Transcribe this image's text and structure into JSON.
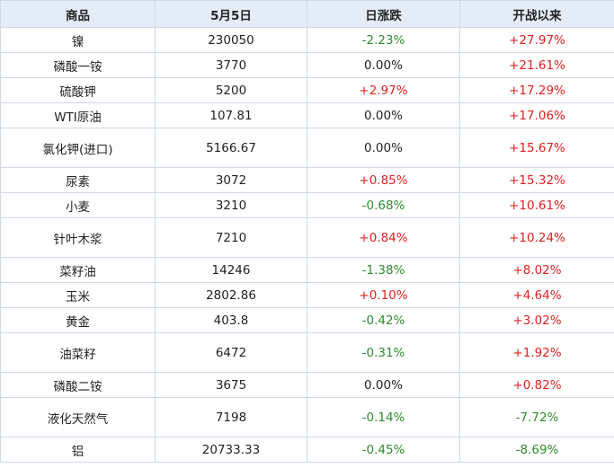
{
  "table": {
    "headers": [
      "商品",
      "5月5日",
      "日涨跌",
      "开战以来"
    ],
    "rows": [
      {
        "name": "镍",
        "price": "230050",
        "daily": "-2.23%",
        "since": "+27.97%",
        "tall": false
      },
      {
        "name": "磷酸一铵",
        "price": "3770",
        "daily": "0.00%",
        "since": "+21.61%",
        "tall": false
      },
      {
        "name": "硫酸钾",
        "price": "5200",
        "daily": "+2.97%",
        "since": "+17.29%",
        "tall": false
      },
      {
        "name": "WTI原油",
        "price": "107.81",
        "daily": "0.00%",
        "since": "+17.06%",
        "tall": false
      },
      {
        "name": "氯化钾(进口)",
        "price": "5166.67",
        "daily": "0.00%",
        "since": "+15.67%",
        "tall": true
      },
      {
        "name": "尿素",
        "price": "3072",
        "daily": "+0.85%",
        "since": "+15.32%",
        "tall": false
      },
      {
        "name": "小麦",
        "price": "3210",
        "daily": "-0.68%",
        "since": "+10.61%",
        "tall": false
      },
      {
        "name": "针叶木浆",
        "price": "7210",
        "daily": "+0.84%",
        "since": "+10.24%",
        "tall": true
      },
      {
        "name": "菜籽油",
        "price": "14246",
        "daily": "-1.38%",
        "since": "+8.02%",
        "tall": false
      },
      {
        "name": "玉米",
        "price": "2802.86",
        "daily": "+0.10%",
        "since": "+4.64%",
        "tall": false
      },
      {
        "name": "黄金",
        "price": "403.8",
        "daily": "-0.42%",
        "since": "+3.02%",
        "tall": false
      },
      {
        "name": "油菜籽",
        "price": "6472",
        "daily": "-0.31%",
        "since": "+1.92%",
        "tall": true
      },
      {
        "name": "磷酸二铵",
        "price": "3675",
        "daily": "0.00%",
        "since": "+0.82%",
        "tall": false
      },
      {
        "name": "液化天然气",
        "price": "7198",
        "daily": "-0.14%",
        "since": "-7.72%",
        "tall": true
      },
      {
        "name": "铝",
        "price": "20733.33",
        "daily": "-0.45%",
        "since": "-8.69%",
        "tall": false
      }
    ]
  },
  "colors": {
    "header_bg": "#e4ecf7",
    "border": "#cfd9e6",
    "positive": "#e02020",
    "negative": "#2e8b2e",
    "neutral": "#222222"
  }
}
